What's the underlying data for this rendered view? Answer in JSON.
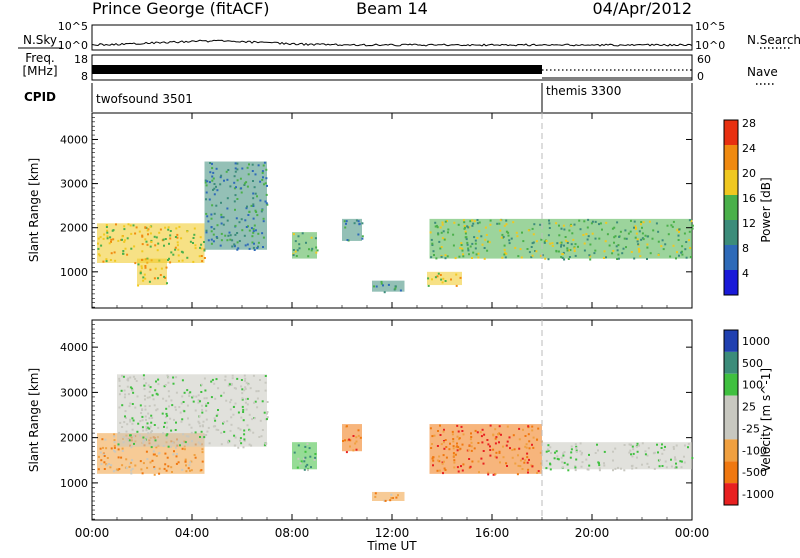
{
  "header": {
    "station": "Prince George (fitACF)",
    "beam": "Beam 14",
    "date": "04/Apr/2012"
  },
  "left_labels": {
    "nsky": "N.Sky",
    "freq_line1": "Freq.",
    "freq_line2": "[MHz]",
    "cpid": "CPID"
  },
  "right_labels": {
    "nsearch": "N.Search",
    "nave": "Nave"
  },
  "nsky_axis": {
    "top": "10^5",
    "bottom": "10^0"
  },
  "freq_axis": {
    "top": "18",
    "bottom": "8"
  },
  "nave_axis": {
    "top": "60",
    "bottom": "0"
  },
  "cpid_segments": [
    {
      "label": "twofsound 3501",
      "start": "00:00",
      "end": "18:00"
    },
    {
      "label": "themis 3300",
      "start": "18:00",
      "end": "24:00"
    }
  ],
  "chart_data": [
    {
      "type": "heatmap",
      "panel": "power",
      "ylabel": "Slant Range [km]",
      "ylim": [
        180,
        4600
      ],
      "y_ticks": [
        "1000",
        "2000",
        "3000",
        "4000"
      ],
      "colorbar_label": "Power [dB]",
      "colorbar_ticks": [
        "4",
        "8",
        "12",
        "16",
        "20",
        "24",
        "28"
      ],
      "colorbar_colors": [
        "#1a1ad8",
        "#2e6ab8",
        "#3c8c7a",
        "#4ab04a",
        "#f0c820",
        "#f08a10",
        "#e83010"
      ],
      "echo_regions": [
        {
          "t_start": 0.2,
          "t_end": 4.5,
          "r_min": 1200,
          "r_max": 2100,
          "power": 20
        },
        {
          "t_start": 1.8,
          "t_end": 3.0,
          "r_min": 700,
          "r_max": 1300,
          "power": 20
        },
        {
          "t_start": 4.5,
          "t_end": 7.0,
          "r_min": 1500,
          "r_max": 3500,
          "power": 10
        },
        {
          "t_start": 8.0,
          "t_end": 9.0,
          "r_min": 1300,
          "r_max": 1900,
          "power": 14
        },
        {
          "t_start": 10.0,
          "t_end": 10.8,
          "r_min": 1700,
          "r_max": 2200,
          "power": 12
        },
        {
          "t_start": 11.2,
          "t_end": 12.5,
          "r_min": 550,
          "r_max": 800,
          "power": 10
        },
        {
          "t_start": 13.4,
          "t_end": 14.8,
          "r_min": 700,
          "r_max": 1000,
          "power": 20
        },
        {
          "t_start": 13.5,
          "t_end": 24.0,
          "r_min": 1300,
          "r_max": 2200,
          "power": 16
        }
      ]
    },
    {
      "type": "heatmap",
      "panel": "velocity",
      "xlabel": "Time UT",
      "ylabel": "Slant Range [km]",
      "ylim": [
        180,
        4600
      ],
      "x_ticks": [
        "00:00",
        "04:00",
        "08:00",
        "12:00",
        "16:00",
        "20:00",
        "00:00"
      ],
      "y_ticks": [
        "1000",
        "2000",
        "3000",
        "4000"
      ],
      "colorbar_label": "Velocity [m s^-1]",
      "colorbar_ticks": [
        "1000",
        "500",
        "100",
        "25",
        "-25",
        "-100",
        "-500",
        "-1000"
      ],
      "colorbar_colors": [
        "#2040b0",
        "#3c8c7a",
        "#40c040",
        "#c8c8c0",
        "#c8c8c0",
        "#f0a040",
        "#f07810",
        "#e82020"
      ],
      "echo_regions": [
        {
          "t_start": 0.2,
          "t_end": 4.5,
          "r_min": 1200,
          "r_max": 2100,
          "velocity": -100
        },
        {
          "t_start": 1.0,
          "t_end": 7.0,
          "r_min": 1800,
          "r_max": 3400,
          "velocity": 0
        },
        {
          "t_start": 8.0,
          "t_end": 9.0,
          "r_min": 1300,
          "r_max": 1900,
          "velocity": 300
        },
        {
          "t_start": 10.0,
          "t_end": 10.8,
          "r_min": 1700,
          "r_max": 2300,
          "velocity": -200
        },
        {
          "t_start": 11.2,
          "t_end": 12.5,
          "r_min": 600,
          "r_max": 800,
          "velocity": -50
        },
        {
          "t_start": 13.5,
          "t_end": 18.0,
          "r_min": 1200,
          "r_max": 2300,
          "velocity": -200
        },
        {
          "t_start": 18.0,
          "t_end": 24.0,
          "r_min": 1300,
          "r_max": 1900,
          "velocity": 0
        }
      ]
    }
  ]
}
